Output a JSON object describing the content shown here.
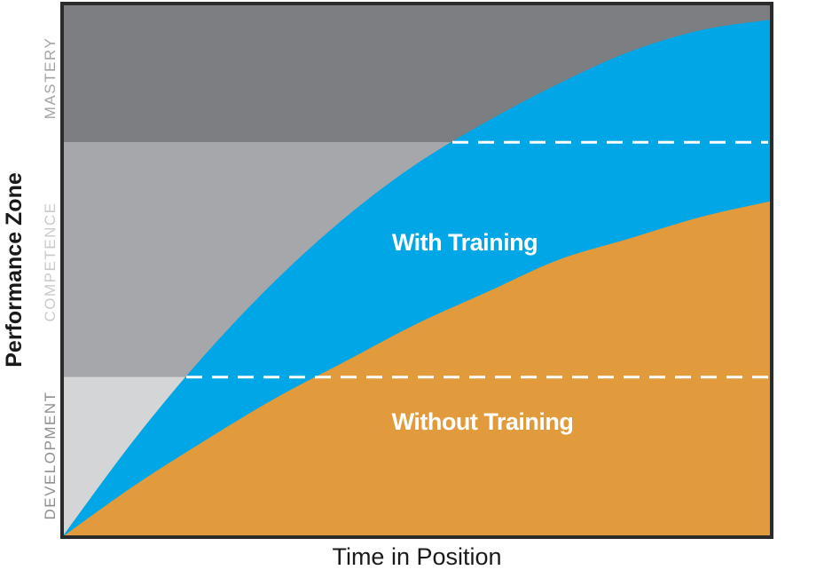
{
  "chart_data": {
    "type": "area",
    "title": "",
    "xlabel": "Time in Position",
    "ylabel": "Performance Zone",
    "zones": [
      {
        "name": "DEVELOPMENT",
        "range": [
          0,
          0.3
        ],
        "color": "#d4d5d7",
        "label_color": "#8e8f92"
      },
      {
        "name": "COMPETENCE",
        "range": [
          0.3,
          0.74
        ],
        "color": "#a6a7aa",
        "label_color": "#c9cacd"
      },
      {
        "name": "MASTERY",
        "range": [
          0.74,
          1.0
        ],
        "color": "#7d7e81",
        "label_color": "#a3a4a7"
      }
    ],
    "series": [
      {
        "name": "With Training",
        "color": "#00a6e5",
        "x": [
          0,
          0.1,
          0.2,
          0.3,
          0.4,
          0.5,
          0.6,
          0.7,
          0.8,
          0.9,
          1.0
        ],
        "y": [
          0,
          0.18,
          0.34,
          0.48,
          0.6,
          0.7,
          0.78,
          0.85,
          0.91,
          0.95,
          0.97
        ]
      },
      {
        "name": "Without Training",
        "color": "#e19b3c",
        "x": [
          0,
          0.1,
          0.2,
          0.3,
          0.4,
          0.5,
          0.6,
          0.7,
          0.8,
          0.9,
          1.0
        ],
        "y": [
          0,
          0.095,
          0.18,
          0.26,
          0.33,
          0.4,
          0.46,
          0.52,
          0.56,
          0.6,
          0.63
        ]
      }
    ],
    "thresholds": [
      0.3,
      0.74
    ],
    "xlim": [
      0,
      1
    ],
    "ylim": [
      0,
      1
    ],
    "grid": false,
    "legend": "none"
  }
}
